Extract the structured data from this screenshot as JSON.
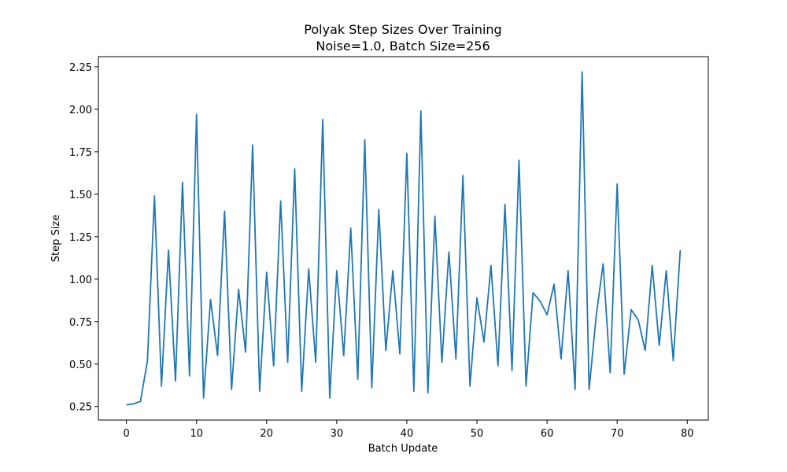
{
  "chart_data": {
    "type": "line",
    "title_line1": "Polyak Step Sizes Over Training",
    "title_line2": "Noise=1.0, Batch Size=256",
    "xlabel": "Batch Update",
    "ylabel": "Step Size",
    "xlim": [
      -4,
      83
    ],
    "ylim": [
      0.17,
      2.31
    ],
    "xticks": [
      0,
      10,
      20,
      30,
      40,
      50,
      60,
      70,
      80
    ],
    "yticks": [
      0.25,
      0.5,
      0.75,
      1.0,
      1.25,
      1.5,
      1.75,
      2.0,
      2.25
    ],
    "xtick_labels": [
      "0",
      "10",
      "20",
      "30",
      "40",
      "50",
      "60",
      "70",
      "80"
    ],
    "ytick_labels": [
      "0.25",
      "0.50",
      "0.75",
      "1.00",
      "1.25",
      "1.50",
      "1.75",
      "2.00",
      "2.25"
    ],
    "grid": false,
    "line_color": "#1f77b4",
    "series": [
      {
        "values": [
          0.26,
          0.265,
          0.28,
          0.52,
          1.49,
          0.37,
          1.17,
          0.4,
          1.57,
          0.43,
          1.97,
          0.3,
          0.88,
          0.55,
          1.4,
          0.35,
          0.94,
          0.57,
          1.79,
          0.34,
          1.04,
          0.49,
          1.46,
          0.51,
          1.65,
          0.34,
          1.06,
          0.51,
          1.94,
          0.3,
          1.05,
          0.55,
          1.3,
          0.41,
          1.82,
          0.36,
          1.41,
          0.58,
          1.05,
          0.56,
          1.74,
          0.34,
          1.99,
          0.33,
          1.37,
          0.51,
          1.16,
          0.53,
          1.61,
          0.37,
          0.89,
          0.63,
          1.08,
          0.49,
          1.44,
          0.46,
          1.7,
          0.37,
          0.92,
          0.87,
          0.79,
          0.97,
          0.53,
          1.05,
          0.35,
          2.22,
          0.35,
          0.78,
          1.09,
          0.45,
          1.56,
          0.44,
          0.82,
          0.76,
          0.58,
          1.08,
          0.61,
          1.05,
          0.52,
          1.17
        ]
      }
    ]
  }
}
